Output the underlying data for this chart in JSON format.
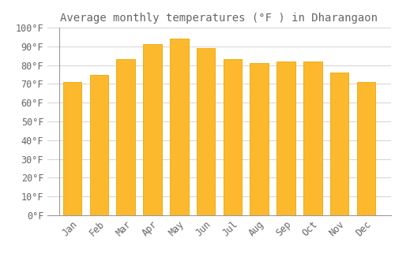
{
  "title": "Average monthly temperatures (°F ) in Dharangaon",
  "months": [
    "Jan",
    "Feb",
    "Mar",
    "Apr",
    "May",
    "Jun",
    "Jul",
    "Aug",
    "Sep",
    "Oct",
    "Nov",
    "Dec"
  ],
  "values": [
    71,
    75,
    83,
    91,
    94,
    89,
    83,
    81,
    82,
    82,
    76,
    71
  ],
  "bar_color": "#FDB92E",
  "bar_edge_color": "#E8A800",
  "background_color": "#FFFFFF",
  "grid_color": "#CCCCCC",
  "text_color": "#666666",
  "ylim": [
    0,
    100
  ],
  "ytick_step": 10,
  "title_fontsize": 10,
  "tick_fontsize": 8.5,
  "bar_width": 0.7
}
